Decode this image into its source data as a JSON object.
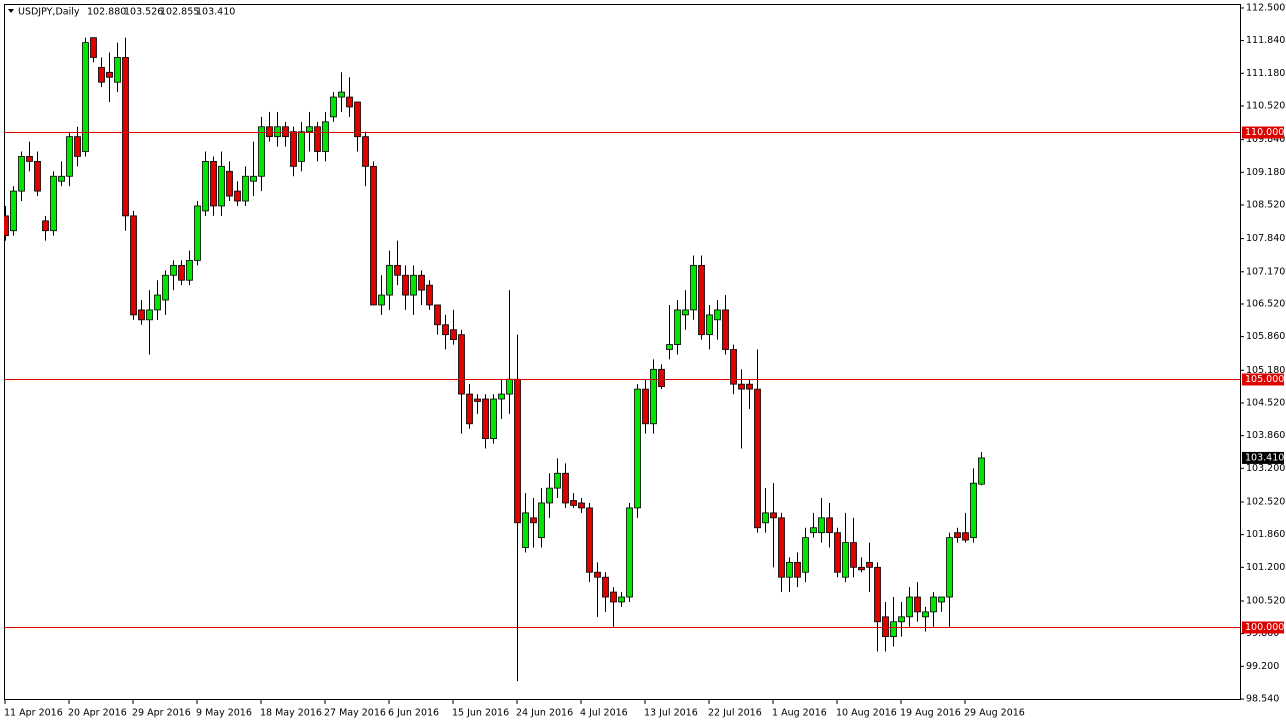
{
  "chart_data": {
    "type": "candlestick",
    "title": "USDJPY,Daily",
    "ohlc_labels": [
      {
        "value": 102.88,
        "label": "102.880"
      },
      {
        "value": 103.526,
        "label": "103.526"
      },
      {
        "value": 102.855,
        "label": "102.855"
      },
      {
        "value": 103.41,
        "label": "103.410"
      }
    ],
    "categories": [
      "11 Apr 2016",
      null,
      null,
      null,
      null,
      null,
      null,
      null,
      "20 Apr 2016",
      null,
      null,
      null,
      null,
      null,
      null,
      null,
      "29 Apr 2016",
      null,
      null,
      null,
      null,
      null,
      null,
      null,
      "9 May 2016",
      null,
      null,
      null,
      null,
      null,
      null,
      null,
      "18 May 2016",
      null,
      null,
      null,
      null,
      null,
      null,
      null,
      "27 May 2016",
      null,
      null,
      null,
      null,
      null,
      null,
      null,
      "6 Jun 2016",
      null,
      null,
      null,
      null,
      null,
      null,
      null,
      "15 Jun 2016",
      null,
      null,
      null,
      null,
      null,
      null,
      null,
      "24 Jun 2016",
      null,
      null,
      null,
      null,
      null,
      null,
      null,
      "4 Jul 2016",
      null,
      null,
      null,
      null,
      null,
      null,
      null,
      "13 Jul 2016",
      null,
      null,
      null,
      null,
      null,
      null,
      null,
      "22 Jul 2016",
      null,
      null,
      null,
      null,
      null,
      null,
      null,
      "1 Aug 2016",
      null,
      null,
      null,
      null,
      null,
      null,
      null,
      "10 Aug 2016",
      null,
      null,
      null,
      null,
      null,
      null,
      null,
      "19 Aug 2016",
      null,
      null,
      null,
      null,
      null,
      null,
      null,
      "29 Aug 2016",
      null,
      null
    ],
    "open": [
      108.3,
      108.0,
      108.8,
      109.5,
      109.4,
      108.2,
      108.0,
      109.0,
      109.1,
      109.9,
      109.6,
      111.9,
      111.3,
      111.2,
      111.0,
      111.5,
      108.3,
      106.4,
      106.2,
      106.4,
      106.6,
      107.1,
      107.3,
      107.0,
      107.4,
      108.4,
      109.4,
      108.5,
      109.2,
      108.8,
      108.6,
      109.0,
      109.1,
      110.1,
      109.9,
      110.1,
      110.0,
      109.4,
      110.0,
      110.1,
      109.6,
      110.3,
      110.7,
      110.7,
      110.6,
      109.9,
      109.3,
      106.5,
      106.7,
      107.3,
      107.1,
      106.7,
      107.1,
      106.9,
      106.5,
      106.1,
      106.0,
      105.9,
      104.7,
      104.6,
      104.6,
      103.8,
      104.6,
      104.7,
      105.0,
      101.6,
      102.2,
      101.8,
      102.5,
      102.8,
      103.1,
      102.55,
      102.5,
      102.4,
      101.1,
      101.0,
      100.7,
      100.5,
      100.6,
      102.4,
      104.8,
      104.1,
      105.2,
      105.6,
      105.7,
      106.3,
      106.4,
      107.3,
      105.9,
      106.2,
      106.4,
      105.6,
      104.9,
      104.9,
      104.8,
      102.1,
      102.3,
      102.2,
      101.0,
      101.3,
      101.1,
      101.9,
      101.9,
      102.2,
      101.9,
      101.0,
      101.7,
      101.2,
      101.3,
      101.2,
      100.2,
      99.8,
      100.1,
      100.2,
      100.6,
      100.2,
      100.3,
      100.5,
      100.6,
      101.9,
      101.9,
      101.8,
      102.88
    ],
    "high": [
      108.5,
      108.9,
      109.6,
      109.8,
      109.6,
      108.3,
      109.2,
      109.4,
      110.0,
      110.1,
      111.9,
      111.9,
      111.5,
      111.6,
      111.8,
      111.9,
      108.4,
      106.6,
      106.8,
      107.0,
      107.2,
      107.4,
      107.4,
      107.6,
      108.6,
      109.6,
      109.5,
      109.6,
      109.4,
      109.0,
      109.3,
      109.8,
      110.3,
      110.4,
      110.4,
      110.2,
      110.1,
      110.2,
      110.4,
      110.2,
      110.4,
      110.8,
      111.2,
      111.1,
      110.6,
      110.0,
      109.4,
      107.1,
      107.6,
      107.8,
      107.3,
      107.3,
      107.2,
      107.0,
      106.5,
      106.3,
      106.4,
      106.0,
      104.9,
      104.7,
      104.7,
      104.7,
      105.0,
      106.8,
      105.9,
      102.7,
      102.6,
      102.8,
      103.1,
      103.4,
      103.3,
      102.7,
      102.6,
      102.5,
      101.3,
      101.1,
      100.8,
      100.7,
      102.5,
      104.9,
      105.0,
      105.4,
      105.3,
      106.5,
      106.6,
      106.8,
      107.5,
      107.5,
      106.5,
      106.6,
      106.7,
      105.7,
      105.2,
      105.0,
      105.6,
      102.8,
      102.9,
      102.3,
      101.4,
      101.5,
      102.0,
      102.3,
      102.6,
      102.5,
      102.0,
      102.3,
      102.2,
      101.4,
      101.7,
      101.3,
      100.5,
      100.6,
      100.5,
      100.8,
      100.9,
      100.4,
      100.7,
      100.6,
      101.9,
      102.0,
      102.3,
      103.2,
      103.526
    ],
    "low": [
      107.8,
      107.9,
      108.6,
      109.2,
      108.7,
      107.8,
      107.9,
      108.9,
      108.9,
      109.3,
      109.5,
      111.4,
      110.9,
      110.6,
      110.8,
      108.0,
      106.2,
      106.1,
      105.5,
      106.2,
      106.3,
      106.8,
      106.9,
      106.9,
      107.3,
      108.3,
      108.3,
      108.3,
      108.6,
      108.5,
      108.5,
      108.7,
      108.8,
      109.8,
      109.7,
      109.7,
      109.1,
      109.2,
      109.6,
      109.4,
      109.4,
      110.2,
      110.4,
      110.3,
      109.6,
      108.9,
      106.5,
      106.3,
      106.4,
      106.9,
      106.4,
      106.3,
      106.5,
      106.4,
      105.9,
      105.6,
      105.7,
      103.9,
      104.0,
      104.3,
      103.6,
      103.7,
      104.2,
      104.3,
      98.9,
      101.5,
      101.6,
      101.6,
      102.2,
      102.6,
      102.4,
      102.4,
      102.3,
      100.9,
      100.2,
      100.3,
      100.0,
      100.4,
      100.5,
      102.2,
      103.9,
      103.9,
      104.8,
      105.4,
      105.5,
      106.0,
      106.2,
      105.8,
      105.6,
      105.8,
      105.5,
      104.7,
      103.6,
      104.4,
      101.9,
      101.9,
      101.2,
      100.7,
      100.7,
      100.8,
      100.9,
      101.8,
      101.7,
      101.6,
      101.0,
      100.9,
      101.0,
      101.1,
      100.7,
      99.5,
      99.5,
      99.6,
      99.8,
      100.0,
      100.1,
      99.9,
      100.0,
      100.3,
      100.0,
      101.7,
      101.7,
      101.7,
      102.855
    ],
    "close": [
      107.9,
      108.8,
      109.5,
      109.4,
      108.8,
      108.0,
      109.1,
      109.1,
      109.9,
      109.5,
      111.8,
      111.5,
      111.0,
      111.1,
      111.5,
      108.3,
      106.3,
      106.2,
      106.4,
      106.7,
      107.1,
      107.3,
      107.0,
      107.4,
      108.5,
      109.4,
      108.5,
      109.3,
      108.7,
      108.6,
      109.1,
      109.1,
      110.1,
      109.9,
      110.1,
      109.9,
      109.3,
      110.0,
      110.1,
      109.6,
      110.2,
      110.7,
      110.8,
      110.5,
      109.9,
      109.3,
      106.5,
      106.7,
      107.3,
      107.1,
      106.7,
      107.1,
      106.8,
      106.5,
      106.1,
      105.9,
      105.8,
      104.7,
      104.1,
      104.55,
      103.8,
      104.6,
      104.7,
      105.0,
      102.1,
      102.3,
      102.1,
      102.5,
      102.8,
      103.1,
      102.5,
      102.45,
      102.4,
      101.1,
      101.0,
      100.6,
      100.5,
      100.6,
      102.4,
      104.8,
      104.1,
      105.2,
      104.85,
      105.7,
      106.4,
      106.4,
      107.3,
      105.9,
      106.3,
      106.4,
      105.6,
      104.9,
      104.8,
      104.8,
      102.0,
      102.3,
      102.2,
      101.0,
      101.3,
      101.0,
      101.8,
      102.0,
      102.2,
      101.9,
      101.1,
      101.7,
      101.2,
      101.15,
      101.2,
      100.1,
      99.8,
      100.1,
      100.2,
      100.6,
      100.3,
      100.3,
      100.6,
      100.6,
      101.8,
      101.8,
      101.75,
      102.9,
      103.41
    ],
    "up_color": "#00e600",
    "down_color": "#e00000",
    "ylim": [
      98.54,
      112.58
    ],
    "yticks": [
      {
        "value": 112.5,
        "label": "112.500"
      },
      {
        "value": 111.84,
        "label": "111.840"
      },
      {
        "value": 111.18,
        "label": "111.180"
      },
      {
        "value": 110.52,
        "label": "110.520"
      },
      {
        "value": 109.84,
        "label": "109.840"
      },
      {
        "value": 109.18,
        "label": "109.180"
      },
      {
        "value": 108.52,
        "label": "108.520"
      },
      {
        "value": 107.84,
        "label": "107.840"
      },
      {
        "value": 107.17,
        "label": "107.170"
      },
      {
        "value": 106.52,
        "label": "106.520"
      },
      {
        "value": 105.86,
        "label": "105.860"
      },
      {
        "value": 105.18,
        "label": "105.180"
      },
      {
        "value": 104.52,
        "label": "104.520"
      },
      {
        "value": 103.86,
        "label": "103.860"
      },
      {
        "value": 103.2,
        "label": "103.200"
      },
      {
        "value": 102.52,
        "label": "102.520"
      },
      {
        "value": 101.86,
        "label": "101.860"
      },
      {
        "value": 101.2,
        "label": "101.200"
      },
      {
        "value": 100.52,
        "label": "100.520"
      },
      {
        "value": 99.86,
        "label": "99.860"
      },
      {
        "value": 99.2,
        "label": "99.200"
      },
      {
        "value": 98.54,
        "label": "98.540"
      }
    ],
    "hlines": [
      {
        "value": 110,
        "label": "110.000"
      },
      {
        "value": 105,
        "label": "105.000"
      },
      {
        "value": 100,
        "label": "100.000"
      }
    ],
    "hline_color": "#e00000",
    "current_price": {
      "value": 103.41,
      "label": "103.410"
    }
  }
}
